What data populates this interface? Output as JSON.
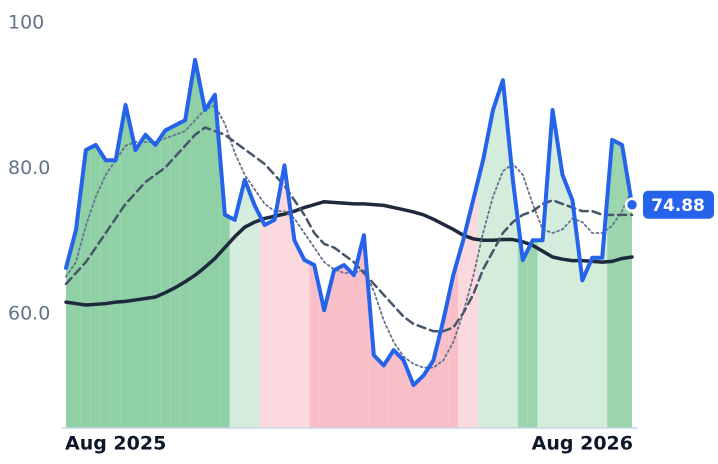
{
  "chart_data": {
    "type": "line",
    "categories": [
      null,
      null,
      null,
      null,
      null,
      "Aug 2025",
      null,
      null,
      null,
      null,
      null,
      null,
      null,
      null,
      null,
      null,
      null,
      null,
      null,
      null,
      null,
      null,
      null,
      null,
      null,
      null,
      null,
      null,
      null,
      null,
      null,
      null,
      null,
      null,
      null,
      null,
      null,
      null,
      null,
      null,
      null,
      null,
      null,
      null,
      null,
      null,
      null,
      null,
      null,
      null,
      null,
      null,
      "Aug 2026",
      null,
      null,
      null,
      null,
      null
    ],
    "ylim": [
      44.2,
      100
    ],
    "yticks": [
      {
        "value": 60,
        "label": "60.0"
      },
      {
        "value": 80,
        "label": "80.0"
      },
      100
    ],
    "series": [
      {
        "color": "#2563eb",
        "width": 4,
        "dash": "none",
        "values": [
          66.2,
          71.4,
          82.4,
          83.1,
          81.0,
          81.0,
          88.6,
          82.4,
          84.5,
          83.1,
          85.1,
          85.8,
          86.5,
          94.8,
          87.9,
          90.0,
          73.5,
          72.8,
          78.3,
          74.8,
          72.1,
          72.8,
          80.3,
          70.0,
          67.3,
          66.6,
          60.4,
          65.9,
          66.6,
          65.2,
          70.7,
          54.2,
          52.8,
          54.9,
          53.5,
          50.1,
          51.4,
          53.5,
          59.0,
          65.2,
          70.0,
          75.5,
          81.0,
          87.9,
          92.0,
          78.3,
          67.3,
          70.0,
          70.0,
          87.9,
          79.0,
          75.5,
          64.5,
          67.6,
          67.6,
          83.8,
          83.1,
          74.88
        ]
      },
      {
        "color": "#475569",
        "width": 2.5,
        "dash": "8 5",
        "values": [
          64,
          65.5,
          67,
          69,
          71,
          73,
          75,
          76.5,
          78,
          79,
          80,
          81.5,
          83,
          84.5,
          85.5,
          85,
          84.5,
          83.5,
          82.5,
          81.5,
          80.5,
          79,
          77.5,
          75.5,
          73.5,
          71,
          69.5,
          69,
          68,
          67,
          65.5,
          64,
          62.5,
          61,
          59.5,
          58.5,
          58,
          57.5,
          57.5,
          58,
          60,
          62.5,
          66,
          68.5,
          71,
          72.5,
          73.5,
          74,
          75,
          75.5,
          75,
          74.5,
          74,
          74,
          73.5,
          73.5,
          73.5,
          73.5
        ]
      },
      {
        "color": "#64748b",
        "width": 1.8,
        "dash": "2 3",
        "values": [
          65,
          67,
          72,
          76,
          79,
          81,
          83,
          83.5,
          83.5,
          83.5,
          84,
          84.5,
          85,
          86.5,
          88,
          88.5,
          86,
          82,
          79,
          77,
          75,
          74,
          74,
          73,
          71,
          69,
          67,
          66,
          65.5,
          65.5,
          66,
          63,
          59,
          56,
          54,
          53,
          52.5,
          52.5,
          53.5,
          56,
          60,
          65,
          71,
          76,
          79.5,
          80.5,
          79,
          75,
          71.5,
          71,
          71.5,
          73,
          72.5,
          71,
          71,
          72,
          74,
          77
        ]
      },
      {
        "color": "#1e293b",
        "width": 3.5,
        "dash": "none",
        "values": [
          61.5,
          61.3,
          61.1,
          61.2,
          61.3,
          61.5,
          61.6,
          61.8,
          62,
          62.2,
          62.8,
          63.5,
          64.3,
          65.2,
          66.3,
          67.5,
          69,
          70.5,
          71.8,
          72.5,
          73,
          73.3,
          73.6,
          74,
          74.5,
          74.9,
          75.3,
          75.2,
          75.1,
          75.0,
          75.0,
          74.9,
          74.8,
          74.5,
          74.2,
          73.9,
          73.5,
          72.9,
          72.2,
          71.5,
          70.7,
          70.2,
          70.0,
          70.0,
          70.1,
          70.1,
          69.8,
          69.3,
          68.5,
          67.7,
          67.4,
          67.2,
          67.2,
          67.1,
          67.0,
          67.1,
          67.5,
          67.7
        ]
      }
    ],
    "fill_colors": [
      "#8fd0a6",
      "#8fd0a6",
      "#8fd0a6",
      "#8fd0a6",
      "#8fd0a6",
      "#8fd0a6",
      "#8fd0a6",
      "#8fd0a6",
      "#8fd0a6",
      "#8fd0a6",
      "#8fd0a6",
      "#8fd0a6",
      "#8fd0a6",
      "#8fd0a6",
      "#8fd0a6",
      "#8fd0a6",
      "#8fd0a6",
      "#d3ecdc",
      "#d3ecdc",
      "#d3ecdc",
      "#fcd9de",
      "#fcd9de",
      "#fcd9de",
      "#fcd9de",
      "#fcd9de",
      "#f9bfc9",
      "#f9bfc9",
      "#f9bfc9",
      "#f9bfc9",
      "#f9bfc9",
      "#f9bfc9",
      "#f9bfc9",
      "#f9bfc9",
      "#f9bfc9",
      "#f9bfc9",
      "#f9bfc9",
      "#f9bfc9",
      "#f9bfc9",
      "#f9bfc9",
      "#f9bfc9",
      "#fcd9de",
      "#fcd9de",
      "#d3ecdc",
      "#d3ecdc",
      "#d3ecdc",
      "#d3ecdc",
      "#9ad5ae",
      "#9ad5ae",
      "#d3ecdc",
      "#d3ecdc",
      "#d3ecdc",
      "#d3ecdc",
      "#d3ecdc",
      "#d3ecdc",
      "#d3ecdc",
      "#9ad5ae",
      "#9ad5ae",
      "#9ad5ae"
    ],
    "last_label_color": "#2563eb"
  }
}
